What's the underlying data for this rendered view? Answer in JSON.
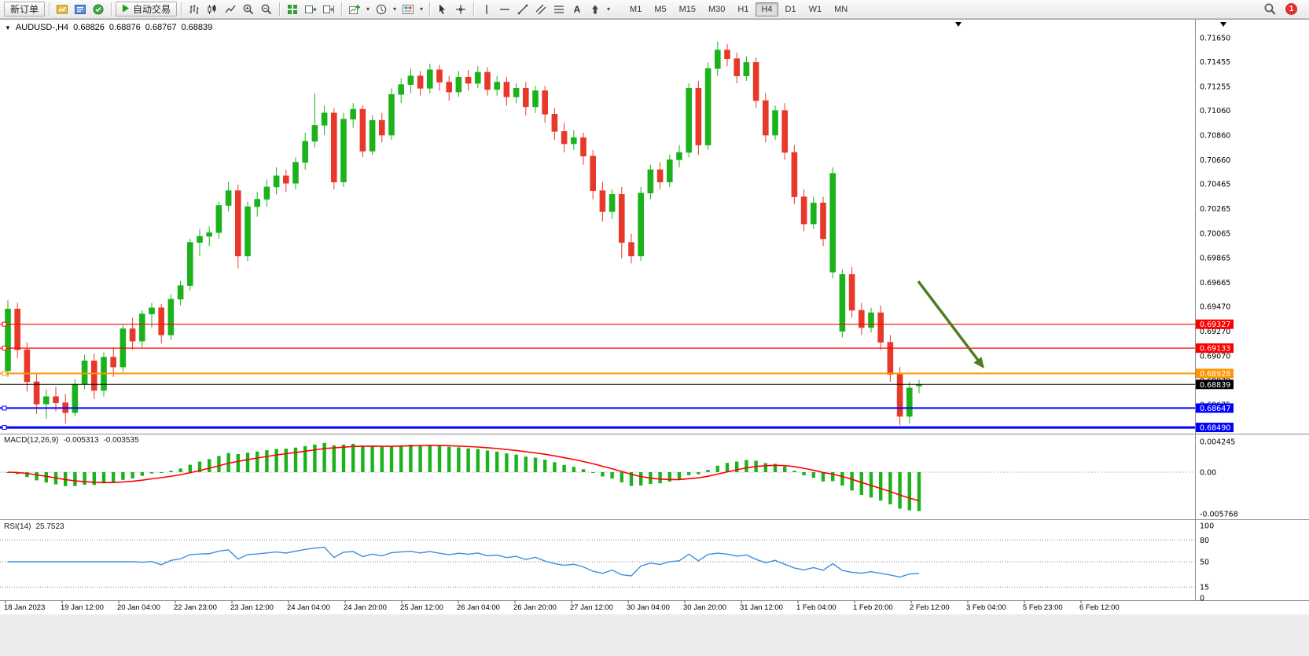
{
  "toolbar": {
    "new_order_label": "新订单",
    "auto_trading_label": "自动交易",
    "timeframes": [
      "M1",
      "M5",
      "M15",
      "M30",
      "H1",
      "H4",
      "D1",
      "W1",
      "MN"
    ],
    "active_timeframe": "H4",
    "notification_count": "1",
    "icons": [
      "market-watch-icon",
      "navigator-icon",
      "terminal-icon",
      "auto-trading-play-icon",
      "bar-chart-icon",
      "candlestick-icon",
      "line-chart-icon",
      "zoom-in-icon",
      "zoom-out-icon",
      "tile-windows-icon",
      "auto-scroll-icon",
      "chart-shift-icon",
      "indicators-icon",
      "periods-icon",
      "templates-icon",
      "cursor-icon",
      "crosshair-icon",
      "vertical-line-icon",
      "horizontal-line-icon",
      "trendline-icon",
      "channel-icon",
      "fibonacci-icon",
      "text-label-icon",
      "arrows-icon",
      "dropdown-arrow-icon",
      "search-icon"
    ]
  },
  "chart_header": {
    "symbol_period": "AUDUSD-,H4",
    "open": "0.68826",
    "high": "0.68876",
    "low": "0.68767",
    "close": "0.68839"
  },
  "indicators": {
    "macd_name": "MACD(12,26,9)",
    "macd_value": "-0.005313",
    "macd_signal_value": "-0.003535",
    "rsi_name": "RSI(14)",
    "rsi_value": "25.7523"
  },
  "chart_data": {
    "type": "candlestick",
    "symbol": "AUDUSD-",
    "period": "H4",
    "price_range": {
      "top": 0.71797,
      "bottom": 0.6844
    },
    "colors": {
      "bull": "#1CB21C",
      "bear": "#E8382A",
      "macd_histogram": "#1CB21C",
      "macd_signal": "#FF0000",
      "rsi_line": "#3E8EDE",
      "arrow": "#4E7C1E"
    },
    "candles": [
      [
        0.6895,
        0.6952,
        0.689,
        0.6945
      ],
      [
        0.6945,
        0.695,
        0.6905,
        0.6912
      ],
      [
        0.6912,
        0.6918,
        0.6878,
        0.6886
      ],
      [
        0.6886,
        0.6892,
        0.686,
        0.6868
      ],
      [
        0.6868,
        0.688,
        0.6856,
        0.6874
      ],
      [
        0.6874,
        0.6882,
        0.6862,
        0.6869
      ],
      [
        0.6869,
        0.6876,
        0.6852,
        0.6861
      ],
      [
        0.6861,
        0.6888,
        0.6858,
        0.6884
      ],
      [
        0.6884,
        0.6908,
        0.688,
        0.6903
      ],
      [
        0.6903,
        0.6909,
        0.6872,
        0.6879
      ],
      [
        0.6879,
        0.691,
        0.6874,
        0.6906
      ],
      [
        0.6906,
        0.6914,
        0.689,
        0.6898
      ],
      [
        0.6898,
        0.6932,
        0.6894,
        0.6929
      ],
      [
        0.6929,
        0.6938,
        0.6912,
        0.6919
      ],
      [
        0.6919,
        0.6944,
        0.6914,
        0.6941
      ],
      [
        0.6941,
        0.695,
        0.693,
        0.6946
      ],
      [
        0.6946,
        0.6949,
        0.6917,
        0.6924
      ],
      [
        0.6924,
        0.6957,
        0.692,
        0.6953
      ],
      [
        0.6953,
        0.6968,
        0.6948,
        0.6964
      ],
      [
        0.6964,
        0.7002,
        0.696,
        0.6999
      ],
      [
        0.6999,
        0.701,
        0.6988,
        0.7004
      ],
      [
        0.7004,
        0.7012,
        0.6996,
        0.7007
      ],
      [
        0.7007,
        0.7032,
        0.7002,
        0.7029
      ],
      [
        0.7029,
        0.7048,
        0.7024,
        0.7041
      ],
      [
        0.7041,
        0.7046,
        0.6978,
        0.6988
      ],
      [
        0.6988,
        0.7032,
        0.6984,
        0.7028
      ],
      [
        0.7028,
        0.704,
        0.702,
        0.7034
      ],
      [
        0.7034,
        0.705,
        0.7028,
        0.7044
      ],
      [
        0.7044,
        0.706,
        0.7038,
        0.7053
      ],
      [
        0.7053,
        0.7058,
        0.704,
        0.7047
      ],
      [
        0.7047,
        0.7068,
        0.7042,
        0.7064
      ],
      [
        0.7064,
        0.7088,
        0.7058,
        0.7081
      ],
      [
        0.7081,
        0.712,
        0.7076,
        0.7094
      ],
      [
        0.7094,
        0.711,
        0.7086,
        0.7104
      ],
      [
        0.7104,
        0.7108,
        0.7042,
        0.7048
      ],
      [
        0.7048,
        0.7104,
        0.7044,
        0.7099
      ],
      [
        0.7099,
        0.7112,
        0.7092,
        0.7107
      ],
      [
        0.7107,
        0.711,
        0.7068,
        0.7073
      ],
      [
        0.7073,
        0.7102,
        0.707,
        0.7098
      ],
      [
        0.7098,
        0.7104,
        0.708,
        0.7086
      ],
      [
        0.7086,
        0.7124,
        0.7082,
        0.7119
      ],
      [
        0.7119,
        0.7132,
        0.7112,
        0.7127
      ],
      [
        0.7127,
        0.714,
        0.712,
        0.7134
      ],
      [
        0.7134,
        0.7138,
        0.7118,
        0.7124
      ],
      [
        0.7124,
        0.7144,
        0.712,
        0.7139
      ],
      [
        0.7139,
        0.7143,
        0.7122,
        0.7129
      ],
      [
        0.7129,
        0.7134,
        0.7114,
        0.7121
      ],
      [
        0.7121,
        0.7138,
        0.7117,
        0.7133
      ],
      [
        0.7133,
        0.7139,
        0.7122,
        0.7128
      ],
      [
        0.7128,
        0.7142,
        0.7124,
        0.7137
      ],
      [
        0.7137,
        0.7141,
        0.7118,
        0.7123
      ],
      [
        0.7123,
        0.7134,
        0.7118,
        0.7129
      ],
      [
        0.7129,
        0.7133,
        0.711,
        0.7117
      ],
      [
        0.7117,
        0.7128,
        0.7112,
        0.7124
      ],
      [
        0.7124,
        0.7129,
        0.7102,
        0.7109
      ],
      [
        0.7109,
        0.7126,
        0.7104,
        0.7122
      ],
      [
        0.7122,
        0.7126,
        0.7096,
        0.7103
      ],
      [
        0.7103,
        0.7108,
        0.7082,
        0.7089
      ],
      [
        0.7089,
        0.7096,
        0.7072,
        0.7079
      ],
      [
        0.7079,
        0.709,
        0.7074,
        0.7084
      ],
      [
        0.7084,
        0.7088,
        0.7062,
        0.7069
      ],
      [
        0.7069,
        0.7074,
        0.7034,
        0.7041
      ],
      [
        0.7041,
        0.7048,
        0.7016,
        0.7024
      ],
      [
        0.7024,
        0.7042,
        0.7018,
        0.7038
      ],
      [
        0.7038,
        0.7044,
        0.6986,
        0.6999
      ],
      [
        0.6999,
        0.7006,
        0.6982,
        0.6988
      ],
      [
        0.6988,
        0.7044,
        0.6984,
        0.7039
      ],
      [
        0.7039,
        0.7062,
        0.7034,
        0.7058
      ],
      [
        0.7058,
        0.7064,
        0.7042,
        0.7048
      ],
      [
        0.7048,
        0.707,
        0.7044,
        0.7066
      ],
      [
        0.7066,
        0.7078,
        0.706,
        0.7072
      ],
      [
        0.7072,
        0.7128,
        0.7068,
        0.7124
      ],
      [
        0.7124,
        0.713,
        0.707,
        0.7078
      ],
      [
        0.7078,
        0.7145,
        0.7074,
        0.714
      ],
      [
        0.714,
        0.7162,
        0.7134,
        0.7155
      ],
      [
        0.7155,
        0.716,
        0.7142,
        0.7148
      ],
      [
        0.7148,
        0.7153,
        0.7128,
        0.7134
      ],
      [
        0.7134,
        0.715,
        0.713,
        0.7145
      ],
      [
        0.7145,
        0.7149,
        0.7108,
        0.7114
      ],
      [
        0.7114,
        0.712,
        0.708,
        0.7086
      ],
      [
        0.7086,
        0.711,
        0.7082,
        0.7106
      ],
      [
        0.7106,
        0.7112,
        0.7066,
        0.7072
      ],
      [
        0.7072,
        0.7078,
        0.703,
        0.7036
      ],
      [
        0.7036,
        0.7042,
        0.7008,
        0.7014
      ],
      [
        0.7014,
        0.7036,
        0.701,
        0.7031
      ],
      [
        0.7031,
        0.7036,
        0.6996,
        0.7002
      ],
      [
        0.6975,
        0.706,
        0.697,
        0.7055
      ],
      [
        0.6927,
        0.6977,
        0.6922,
        0.6973
      ],
      [
        0.6973,
        0.6979,
        0.6938,
        0.6944
      ],
      [
        0.6944,
        0.695,
        0.6924,
        0.693
      ],
      [
        0.693,
        0.6946,
        0.6926,
        0.6942
      ],
      [
        0.6942,
        0.6948,
        0.6912,
        0.6918
      ],
      [
        0.6918,
        0.6924,
        0.6886,
        0.6892
      ],
      [
        0.6892,
        0.6898,
        0.6851,
        0.6858
      ],
      [
        0.6858,
        0.6886,
        0.6852,
        0.6881
      ],
      [
        0.68826,
        0.68876,
        0.68767,
        0.68839
      ]
    ],
    "price_scale_labels": [
      "0.71650",
      "0.71455",
      "0.71255",
      "0.71060",
      "0.70860",
      "0.70660",
      "0.70465",
      "0.70265",
      "0.70065",
      "0.69865",
      "0.69665",
      "0.69470",
      "0.69270",
      "0.69070",
      "0.68870",
      "0.68675",
      "0.68475"
    ],
    "horizontal_lines": [
      {
        "label": "0.69327",
        "value": 0.69327,
        "color": "#FF0000",
        "width": 1.2
      },
      {
        "label": "0.69133",
        "value": 0.69133,
        "color": "#FF0000",
        "width": 1.2
      },
      {
        "label": "0.68928",
        "value": 0.68928,
        "color": "#FF9500",
        "width": 2
      },
      {
        "label": "0.68647",
        "value": 0.68647,
        "color": "#0000FF",
        "width": 2
      },
      {
        "label": "0.68490",
        "value": 0.6849,
        "color": "#0000FF",
        "width": 3
      }
    ],
    "bid_line": {
      "label": "0.68839",
      "value": 0.68839,
      "color": "#000000",
      "width": 1
    },
    "macd": {
      "params": "12,26,9",
      "value": -0.005313,
      "signal": -0.003535,
      "scale_labels": [
        "0.004245",
        "0.00",
        "-0.005768"
      ],
      "scale_values": [
        0.004245,
        0,
        -0.005768
      ]
    },
    "rsi": {
      "period": 14,
      "value": 25.7523,
      "levels": [
        80,
        50,
        15
      ],
      "scale_labels": [
        "100",
        "80",
        "50",
        "15",
        "0"
      ],
      "scale_values": [
        100,
        80,
        50,
        15,
        0
      ]
    },
    "time_labels": [
      "18 Jan 2023",
      "19 Jan 12:00",
      "20 Jan 04:00",
      "22 Jan 23:00",
      "23 Jan 12:00",
      "24 Jan 04:00",
      "24 Jan 20:00",
      "25 Jan 12:00",
      "26 Jan 04:00",
      "26 Jan 20:00",
      "27 Jan 12:00",
      "30 Jan 04:00",
      "30 Jan 20:00",
      "31 Jan 12:00",
      "1 Feb 04:00",
      "1 Feb 20:00",
      "2 Feb 12:00",
      "3 Feb 04:00",
      "5 Feb 23:00",
      "6 Feb 12:00"
    ],
    "annotation_arrow": {
      "color": "#4E7C1E",
      "direction": "down-right"
    }
  }
}
